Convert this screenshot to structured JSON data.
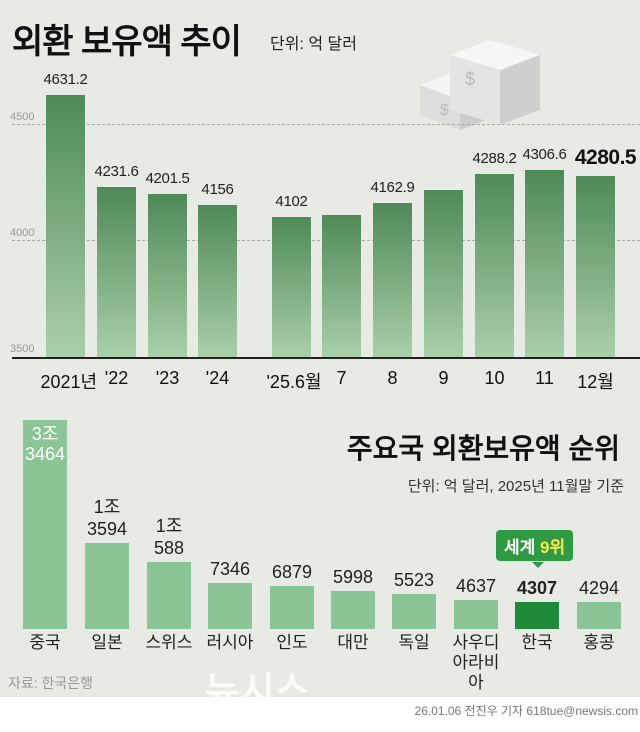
{
  "top": {
    "title": "외환 보유액 추이",
    "unit": "단위: 억 달러"
  },
  "bottom": {
    "title": "주요국 외환보유액 순위",
    "unit": "단위: 억 달러, 2025년 11월말 기준",
    "badge_prefix": "세계 ",
    "badge_rank": "9위",
    "source": "자료: 한국은행"
  },
  "credit": "26.01.06 전진우 기자 618tue@newsis.com",
  "watermark": "뉴시스",
  "colors": {
    "bar_top": "#4f8a58",
    "bar2": "#8cc595",
    "highlight": "#1e8a3a"
  },
  "chart_data": [
    {
      "type": "bar",
      "title": "외환 보유액 추이",
      "ylabel": "억 달러",
      "ylim": [
        3500,
        4700
      ],
      "yticks": [
        "3500",
        "4000",
        "4500"
      ],
      "categories": [
        "2021년",
        "'22",
        "'23",
        "'24",
        "'25.6월",
        "7",
        "8",
        "9",
        "10",
        "11",
        "12월"
      ],
      "values": [
        4631.2,
        4231.6,
        4201.5,
        4156,
        4102,
        4113,
        4162.9,
        4220,
        4288.2,
        4306.6,
        4280.5
      ],
      "labels": [
        "4631.2",
        "4231.6",
        "4201.5",
        "4156",
        "4102",
        "",
        "4162.9",
        "",
        "4288.2",
        "4306.6",
        "4280.5"
      ]
    },
    {
      "type": "bar",
      "title": "주요국 외환보유액 순위",
      "categories": [
        "중국",
        "일본",
        "스위스",
        "러시아",
        "인도",
        "대만",
        "독일",
        "사우디 아라비아",
        "한국",
        "홍콩"
      ],
      "values": [
        33464,
        13594,
        10588,
        7346,
        6879,
        5998,
        5523,
        4637,
        4307,
        4294
      ],
      "labels": [
        [
          "3조",
          "3464"
        ],
        [
          "1조",
          "3594"
        ],
        [
          "1조",
          "588"
        ],
        [
          "",
          "7346"
        ],
        [
          "",
          "6879"
        ],
        [
          "",
          "5998"
        ],
        [
          "",
          "5523"
        ],
        [
          "",
          "4637"
        ],
        [
          "",
          "4307"
        ],
        [
          "",
          "4294"
        ]
      ],
      "highlight": "한국"
    }
  ]
}
